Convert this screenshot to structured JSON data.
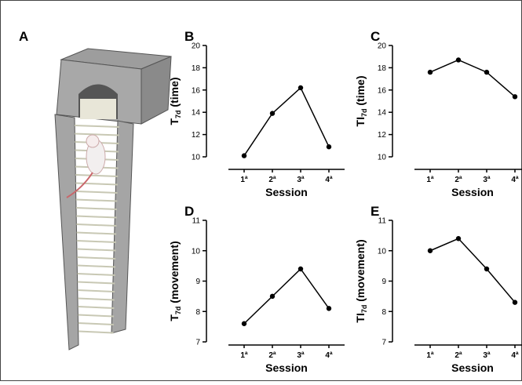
{
  "illustration": {
    "label": "A"
  },
  "chart_data": [
    {
      "type": "line",
      "panel": "B",
      "ylabel": {
        "main": "T",
        "sub": "7d",
        "rest": " (time)"
      },
      "xlabel": "Session",
      "categories": [
        "1ª",
        "2ª",
        "3ª",
        "4ª"
      ],
      "values": [
        10.1,
        13.9,
        16.2,
        10.9
      ],
      "color": "#000000",
      "ylim": [
        10,
        20
      ],
      "yticks": [
        10,
        12,
        14,
        16,
        18,
        20
      ]
    },
    {
      "type": "line",
      "panel": "C",
      "ylabel": {
        "main": "TI",
        "sub": "7d",
        "rest": " (time)"
      },
      "xlabel": "Session",
      "categories": [
        "1ª",
        "2ª",
        "3ª",
        "4ª"
      ],
      "values": [
        17.6,
        18.7,
        17.6,
        15.4
      ],
      "color": "#000000",
      "ylim": [
        10,
        20
      ],
      "yticks": [
        10,
        12,
        14,
        16,
        18,
        20
      ]
    },
    {
      "type": "line",
      "panel": "D",
      "ylabel": {
        "main": "T",
        "sub": "7d",
        "rest": " (movement)"
      },
      "xlabel": "Session",
      "categories": [
        "1ª",
        "2ª",
        "3ª",
        "4ª"
      ],
      "values": [
        7.6,
        8.5,
        9.4,
        8.1
      ],
      "color": "#000000",
      "ylim": [
        7,
        11
      ],
      "yticks": [
        7,
        8,
        9,
        10,
        11
      ]
    },
    {
      "type": "line",
      "panel": "E",
      "ylabel": {
        "main": "TI",
        "sub": "7d",
        "rest": " (movement)"
      },
      "xlabel": "Session",
      "categories": [
        "1ª",
        "2ª",
        "3ª",
        "4ª"
      ],
      "values": [
        10.0,
        10.4,
        9.4,
        8.3
      ],
      "color": "#000000",
      "ylim": [
        7,
        11
      ],
      "yticks": [
        7,
        8,
        9,
        10,
        11
      ]
    }
  ]
}
